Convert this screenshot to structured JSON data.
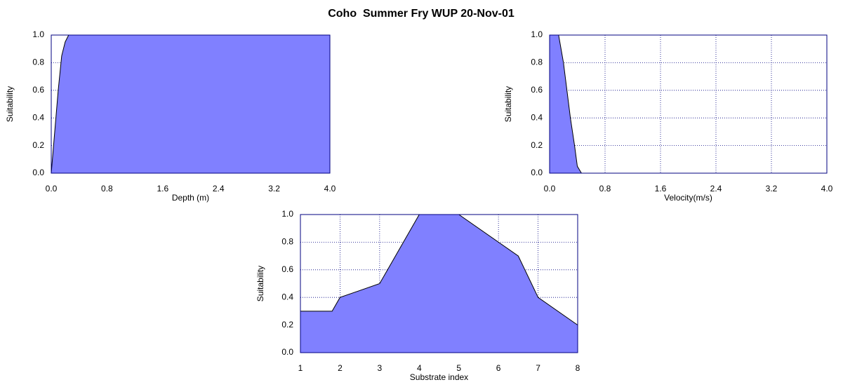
{
  "title": "Coho  Summer Fry WUP 20-Nov-01",
  "chart_data": [
    {
      "type": "area",
      "xlabel": "Depth (m)",
      "ylabel": "Suitability",
      "color": "#8080ff",
      "grid": true,
      "x": [
        0,
        0.05,
        0.1,
        0.15,
        0.2,
        0.25,
        4
      ],
      "values": [
        0,
        0.3,
        0.6,
        0.85,
        0.95,
        1,
        1
      ],
      "xlim": [
        0,
        4
      ],
      "ylim": [
        0,
        1
      ],
      "xticks": [
        {
          "value": 0,
          "label": "0.0"
        },
        0.8,
        1.6,
        2.4,
        3.2,
        {
          "value": 4,
          "label": "4.0"
        }
      ],
      "yticks": [
        {
          "value": 0,
          "label": "0.0"
        },
        0.2,
        0.4,
        0.6,
        0.8,
        {
          "value": 1,
          "label": "1.0"
        }
      ]
    },
    {
      "type": "area",
      "xlabel": "Velocity(m/s)",
      "ylabel": "Suitability",
      "color": "#8080ff",
      "grid": true,
      "x": [
        0,
        0.13,
        0.2,
        0.3,
        0.36,
        0.4,
        0.46,
        4
      ],
      "values": [
        1,
        1,
        0.8,
        0.4,
        0.2,
        0.05,
        0,
        0
      ],
      "xlim": [
        0,
        4
      ],
      "ylim": [
        0,
        1
      ],
      "xticks": [
        {
          "value": 0,
          "label": "0.0"
        },
        0.8,
        1.6,
        2.4,
        3.2,
        {
          "value": 4,
          "label": "4.0"
        }
      ],
      "yticks": [
        {
          "value": 0,
          "label": "0.0"
        },
        0.2,
        0.4,
        0.6,
        0.8,
        {
          "value": 1,
          "label": "1.0"
        }
      ]
    },
    {
      "type": "area",
      "xlabel": "Substrate index",
      "ylabel": "Suitability",
      "color": "#8080ff",
      "grid": true,
      "x": [
        1,
        1.8,
        2,
        3,
        4,
        5,
        6.5,
        7,
        8
      ],
      "values": [
        0.3,
        0.3,
        0.4,
        0.5,
        1,
        1,
        0.7,
        0.4,
        0.2
      ],
      "xlim": [
        1,
        8
      ],
      "ylim": [
        0,
        1
      ],
      "xticks": [
        1,
        2,
        3,
        4,
        5,
        6,
        7,
        8
      ],
      "yticks": [
        {
          "value": 0,
          "label": "0.0"
        },
        0.2,
        0.4,
        0.6,
        0.8,
        {
          "value": 1,
          "label": "1.0"
        }
      ]
    }
  ]
}
